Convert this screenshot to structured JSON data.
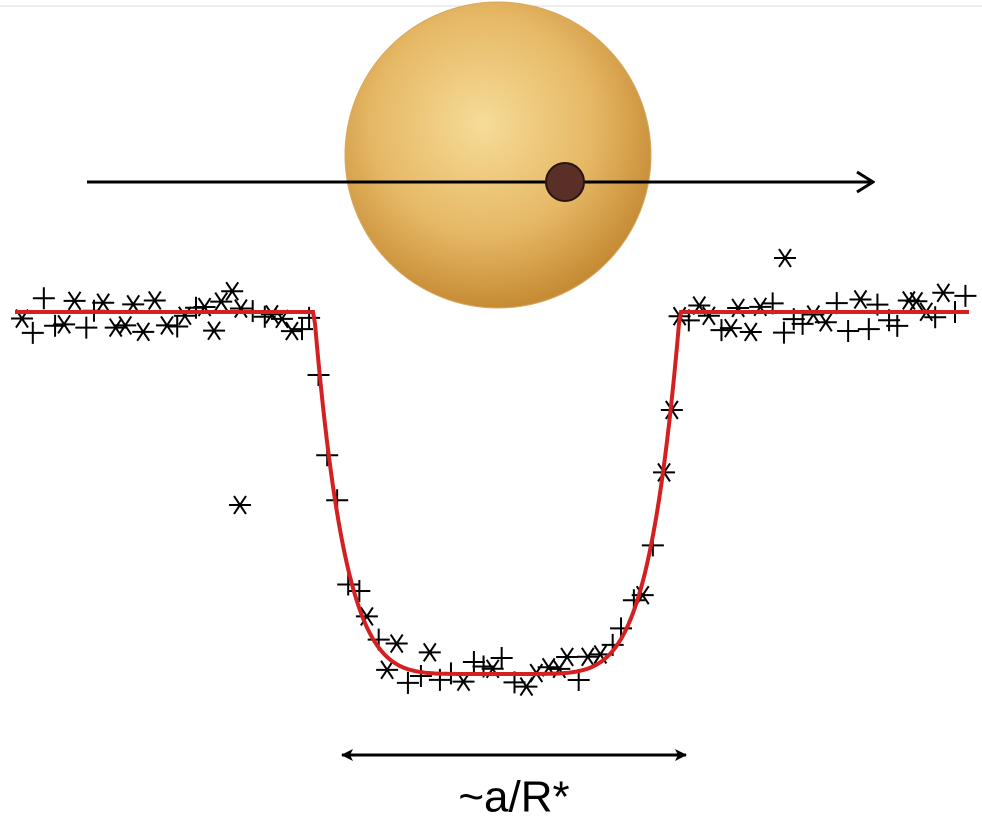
{
  "label": "~a/R*"
}
